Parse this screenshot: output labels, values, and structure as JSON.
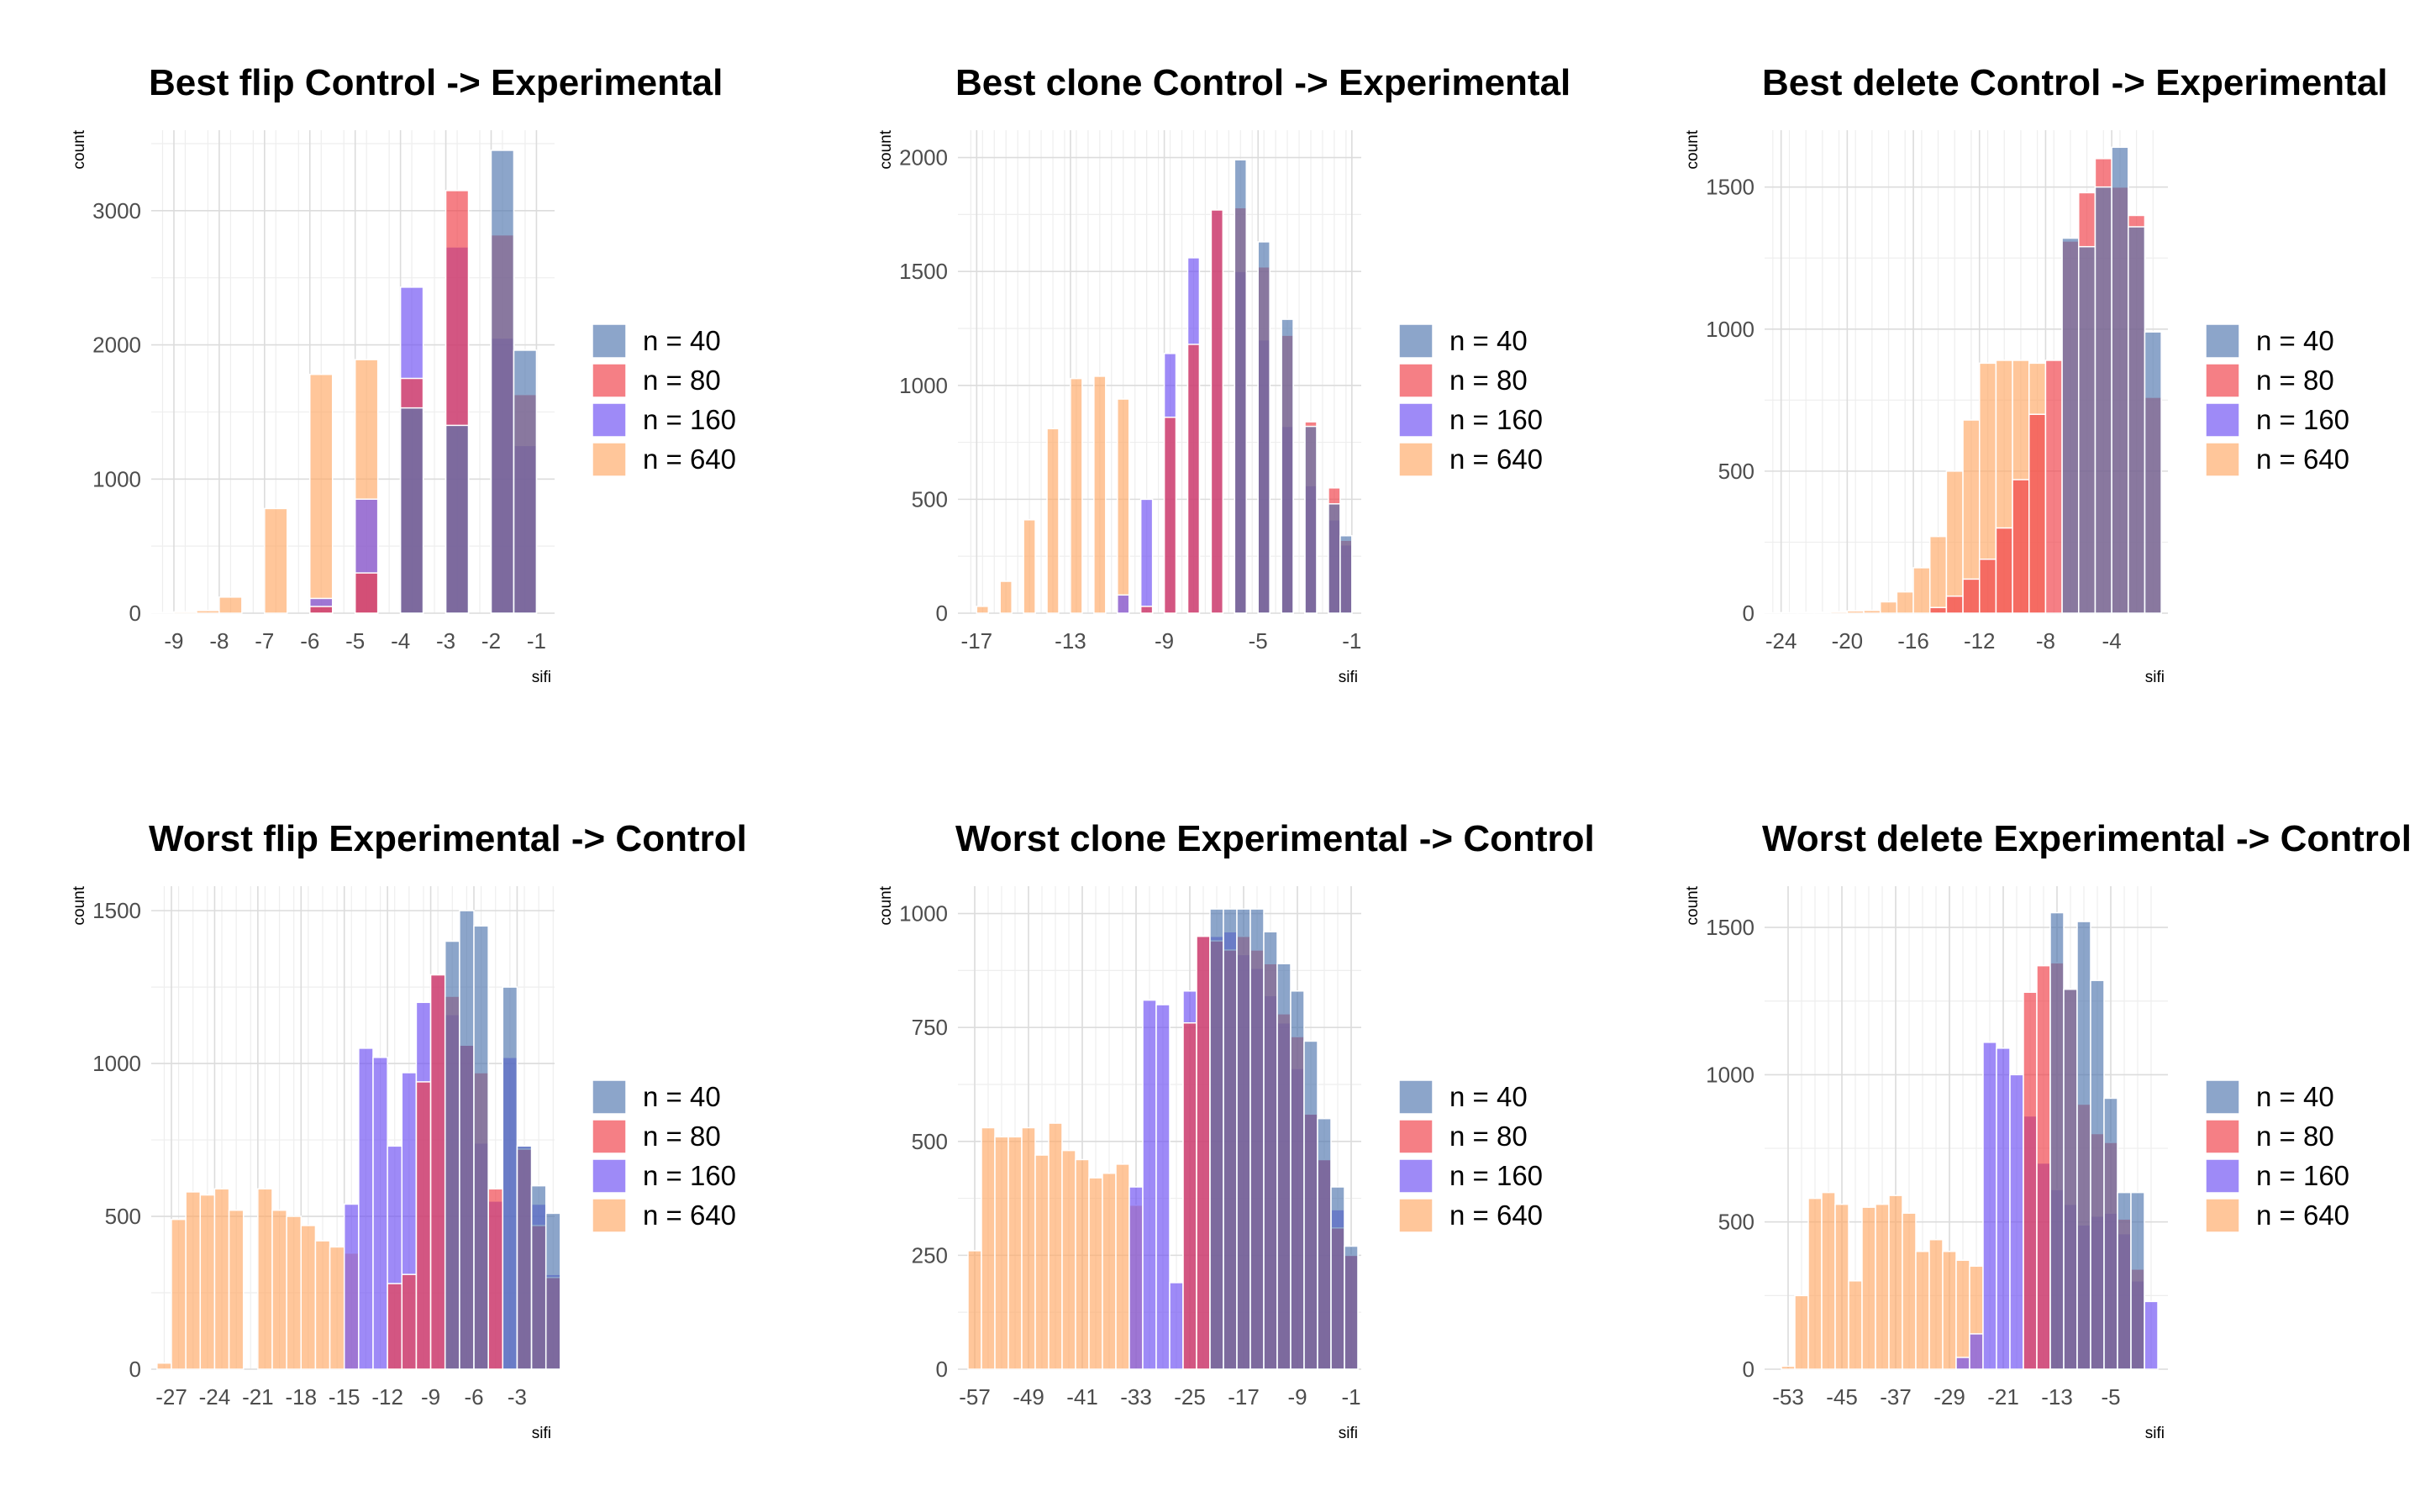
{
  "colors": {
    "n = 40": "#4e74ad",
    "n = 80": "#ef3b43",
    "n = 160": "#6a4cf2",
    "n = 640": "#ffa764"
  },
  "chart_data": [
    {
      "type": "bar",
      "title": "Best flip Control -> Experimental",
      "xlabel": "sifi",
      "ylabel": "count",
      "binwidth": 0.5,
      "xlim": [
        -9.5,
        -0.6
      ],
      "ylim": [
        0,
        3600
      ],
      "xticks": [
        -9,
        -8,
        -7,
        -6,
        -5,
        -4,
        -3,
        -2,
        -1
      ],
      "yticks": [
        0,
        1000,
        2000,
        3000
      ],
      "legend_position": "right",
      "bins": [
        -9.25,
        -8.75,
        -8.25,
        -7.75,
        -7.25,
        -6.75,
        -6.25,
        -5.75,
        -5.25,
        -4.75,
        -4.25,
        -3.75,
        -3.25,
        -2.75,
        -2.25,
        -1.75,
        -1.25
      ],
      "series": [
        {
          "name": "n = 640",
          "values": [
            5,
            10,
            20,
            120,
            0,
            780,
            0,
            1780,
            0,
            1890,
            0,
            0,
            0,
            0,
            0,
            0,
            0
          ]
        },
        {
          "name": "n = 160",
          "values": [
            0,
            0,
            0,
            0,
            0,
            0,
            0,
            110,
            0,
            850,
            0,
            2430,
            0,
            2730,
            0,
            2050,
            1250
          ]
        },
        {
          "name": "n = 80",
          "values": [
            0,
            0,
            0,
            0,
            0,
            0,
            0,
            50,
            0,
            300,
            0,
            1750,
            0,
            3150,
            0,
            2820,
            1630
          ]
        },
        {
          "name": "n = 40",
          "values": [
            0,
            0,
            0,
            0,
            0,
            0,
            0,
            0,
            0,
            0,
            0,
            1530,
            0,
            1400,
            0,
            3450,
            1960
          ]
        }
      ]
    },
    {
      "type": "bar",
      "title": "Best clone Control -> Experimental",
      "xlabel": "sifi",
      "ylabel": "count",
      "binwidth": 0.5,
      "xlim": [
        -17.8,
        -0.6
      ],
      "ylim": [
        0,
        2120
      ],
      "xticks": [
        -17,
        -13,
        -9,
        -5,
        -1
      ],
      "yticks": [
        0,
        500,
        1000,
        1500,
        2000
      ],
      "legend_position": "right",
      "bins": [
        -17.25,
        -16.75,
        -16.25,
        -15.75,
        -15.25,
        -14.75,
        -14.25,
        -13.75,
        -13.25,
        -12.75,
        -12.25,
        -11.75,
        -11.25,
        -10.75,
        -10.25,
        -9.75,
        -9.25,
        -8.75,
        -8.25,
        -7.75,
        -7.25,
        -6.75,
        -6.25,
        -5.75,
        -5.25,
        -4.75,
        -4.25,
        -3.75,
        -3.25,
        -2.75,
        -2.25,
        -1.75,
        -1.25
      ],
      "series": [
        {
          "name": "n = 640",
          "values": [
            0,
            30,
            0,
            140,
            0,
            410,
            0,
            810,
            0,
            1030,
            0,
            1040,
            0,
            940,
            0,
            0,
            0,
            0,
            0,
            0,
            0,
            0,
            0,
            0,
            0,
            0,
            0,
            0,
            0,
            0,
            0,
            0,
            0
          ]
        },
        {
          "name": "n = 160",
          "values": [
            0,
            0,
            0,
            0,
            0,
            0,
            0,
            0,
            0,
            0,
            0,
            0,
            0,
            80,
            0,
            500,
            0,
            1140,
            0,
            1560,
            0,
            1770,
            0,
            1500,
            0,
            1200,
            0,
            820,
            0,
            560,
            0,
            410,
            300
          ]
        },
        {
          "name": "n = 80",
          "values": [
            0,
            0,
            0,
            0,
            0,
            0,
            0,
            0,
            0,
            0,
            0,
            0,
            0,
            0,
            0,
            30,
            0,
            860,
            0,
            1180,
            0,
            1770,
            0,
            1780,
            0,
            1520,
            0,
            1220,
            0,
            840,
            0,
            550,
            320
          ]
        },
        {
          "name": "n = 40",
          "values": [
            0,
            0,
            0,
            0,
            0,
            0,
            0,
            0,
            0,
            0,
            0,
            0,
            0,
            0,
            0,
            0,
            0,
            0,
            0,
            0,
            0,
            0,
            0,
            1990,
            0,
            1630,
            0,
            1290,
            0,
            820,
            0,
            480,
            340
          ]
        }
      ]
    },
    {
      "type": "bar",
      "title": "Best delete Control -> Experimental",
      "xlabel": "sifi",
      "ylabel": "count",
      "binwidth": 1,
      "xlim": [
        -25,
        -0.6
      ],
      "ylim": [
        0,
        1700
      ],
      "xticks": [
        -24,
        -20,
        -16,
        -12,
        -8,
        -4
      ],
      "yticks": [
        0,
        500,
        1000,
        1500
      ],
      "legend_position": "right",
      "bins": [
        -24.5,
        -23.5,
        -22.5,
        -21.5,
        -20.5,
        -19.5,
        -18.5,
        -17.5,
        -16.5,
        -15.5,
        -14.5,
        -13.5,
        -12.5,
        -11.5,
        -10.5,
        -9.5,
        -8.5,
        -7.5,
        -6.5,
        -5.5,
        -4.5,
        -3.5,
        -2.5,
        -1.5
      ],
      "series": [
        {
          "name": "n = 640",
          "values": [
            1,
            2,
            3,
            3,
            5,
            8,
            10,
            40,
            75,
            160,
            270,
            500,
            680,
            880,
            890,
            890,
            880,
            0,
            0,
            0,
            0,
            0,
            0,
            0
          ]
        },
        {
          "name": "n = 160",
          "values": [
            0,
            0,
            0,
            0,
            0,
            0,
            0,
            0,
            0,
            0,
            0,
            0,
            0,
            0,
            0,
            0,
            0,
            0,
            0,
            0,
            0,
            0,
            0,
            0
          ]
        },
        {
          "name": "n = 80",
          "values": [
            0,
            0,
            0,
            0,
            0,
            0,
            0,
            0,
            0,
            0,
            20,
            60,
            120,
            190,
            300,
            470,
            700,
            890,
            1310,
            1480,
            1600,
            1500,
            1400,
            760
          ]
        },
        {
          "name": "n = 40",
          "values": [
            0,
            0,
            0,
            0,
            0,
            0,
            0,
            0,
            0,
            0,
            0,
            0,
            0,
            0,
            0,
            0,
            0,
            0,
            1320,
            1290,
            1500,
            1640,
            1360,
            990
          ]
        }
      ]
    },
    {
      "type": "bar",
      "title": "Worst flip Experimental -> Control",
      "xlabel": "sifi",
      "ylabel": "count",
      "binwidth": 1,
      "xlim": [
        -28.4,
        -0.4
      ],
      "ylim": [
        0,
        1580
      ],
      "xticks": [
        -27,
        -24,
        -21,
        -18,
        -15,
        -12,
        -9,
        -6,
        -3
      ],
      "yticks": [
        0,
        500,
        1000,
        1500
      ],
      "legend_position": "right",
      "bins": [
        -27.5,
        -26.5,
        -25.5,
        -24.5,
        -23.5,
        -22.5,
        -21.5,
        -20.5,
        -19.5,
        -18.5,
        -17.5,
        -16.5,
        -15.5,
        -14.5,
        -13.5,
        -12.5,
        -11.5,
        -10.5,
        -9.5,
        -8.5,
        -7.5,
        -6.5,
        -5.5,
        -4.5,
        -3.5,
        -2.5,
        -1.5,
        -0.5
      ],
      "series": [
        {
          "name": "n = 640",
          "values": [
            20,
            490,
            580,
            570,
            590,
            520,
            0,
            590,
            520,
            500,
            470,
            420,
            400,
            380,
            0,
            0,
            0,
            0,
            0,
            0,
            0,
            0,
            0,
            0,
            0,
            0,
            0,
            0
          ]
        },
        {
          "name": "n = 160",
          "values": [
            0,
            0,
            0,
            0,
            0,
            0,
            0,
            0,
            0,
            0,
            0,
            0,
            0,
            540,
            1050,
            1020,
            730,
            970,
            1200,
            1290,
            1160,
            1060,
            740,
            550,
            1020,
            730,
            540,
            310
          ]
        },
        {
          "name": "n = 80",
          "values": [
            0,
            0,
            0,
            0,
            0,
            0,
            0,
            0,
            0,
            0,
            0,
            0,
            0,
            0,
            0,
            0,
            280,
            310,
            940,
            1290,
            1220,
            1060,
            970,
            590,
            0,
            720,
            470,
            300
          ]
        },
        {
          "name": "n = 40",
          "values": [
            0,
            0,
            0,
            0,
            0,
            0,
            0,
            0,
            0,
            0,
            0,
            0,
            0,
            0,
            0,
            0,
            0,
            0,
            0,
            0,
            1400,
            1500,
            1450,
            0,
            1250,
            730,
            600,
            510
          ]
        }
      ]
    },
    {
      "type": "bar",
      "title": "Worst clone Experimental -> Control",
      "xlabel": "sifi",
      "ylabel": "count",
      "binwidth": 2,
      "xlim": [
        -59.5,
        0.5
      ],
      "ylim": [
        0,
        1060
      ],
      "xticks": [
        -57,
        -49,
        -41,
        -33,
        -25,
        -17,
        -9,
        -1
      ],
      "yticks": [
        0,
        250,
        500,
        750,
        1000
      ],
      "legend_position": "right",
      "bins": [
        -57,
        -55,
        -53,
        -51,
        -49,
        -47,
        -45,
        -43,
        -41,
        -39,
        -37,
        -35,
        -33,
        -31,
        -29,
        -27,
        -25,
        -23,
        -21,
        -19,
        -17,
        -15,
        -13,
        -11,
        -9,
        -7,
        -5,
        -3,
        -1
      ],
      "series": [
        {
          "name": "n = 640",
          "values": [
            260,
            530,
            510,
            510,
            530,
            470,
            540,
            480,
            460,
            420,
            430,
            450,
            360,
            0,
            0,
            0,
            0,
            0,
            0,
            0,
            0,
            0,
            0,
            0,
            0,
            0,
            0,
            0,
            0
          ]
        },
        {
          "name": "n = 160",
          "values": [
            0,
            0,
            0,
            0,
            0,
            0,
            0,
            0,
            0,
            0,
            0,
            0,
            400,
            810,
            800,
            190,
            830,
            950,
            950,
            960,
            910,
            880,
            820,
            760,
            660,
            560,
            460,
            350,
            250
          ]
        },
        {
          "name": "n = 80",
          "values": [
            0,
            0,
            0,
            0,
            0,
            0,
            0,
            0,
            0,
            0,
            0,
            0,
            0,
            0,
            0,
            0,
            760,
            950,
            940,
            920,
            950,
            920,
            890,
            780,
            730,
            560,
            460,
            310,
            250
          ]
        },
        {
          "name": "n = 40",
          "values": [
            0,
            0,
            0,
            0,
            0,
            0,
            0,
            0,
            0,
            0,
            0,
            0,
            0,
            0,
            0,
            0,
            0,
            0,
            1010,
            1010,
            1010,
            1010,
            960,
            890,
            830,
            720,
            550,
            400,
            270
          ]
        }
      ]
    },
    {
      "type": "bar",
      "title": "Worst delete Experimental -> Control",
      "xlabel": "sifi",
      "ylabel": "count",
      "binwidth": 2,
      "xlim": [
        -56.5,
        3.5
      ],
      "ylim": [
        0,
        1640
      ],
      "xticks": [
        -53,
        -45,
        -37,
        -29,
        -21,
        -13,
        -5
      ],
      "yticks": [
        0,
        500,
        1000,
        1500
      ],
      "legend_position": "right",
      "bins": [
        -53,
        -51,
        -49,
        -47,
        -45,
        -43,
        -41,
        -39,
        -37,
        -35,
        -33,
        -31,
        -29,
        -27,
        -25,
        -23,
        -21,
        -19,
        -17,
        -15,
        -13,
        -11,
        -9,
        -7,
        -5,
        -3,
        -1,
        1
      ],
      "series": [
        {
          "name": "n = 640",
          "values": [
            10,
            250,
            580,
            600,
            560,
            300,
            550,
            560,
            590,
            530,
            400,
            440,
            400,
            370,
            350,
            0,
            0,
            0,
            0,
            0,
            0,
            0,
            0,
            0,
            0,
            0,
            0,
            0
          ]
        },
        {
          "name": "n = 160",
          "values": [
            0,
            0,
            0,
            0,
            0,
            0,
            0,
            0,
            0,
            0,
            0,
            0,
            0,
            40,
            120,
            1110,
            1090,
            1000,
            860,
            700,
            610,
            560,
            490,
            520,
            530,
            460,
            300,
            230
          ]
        },
        {
          "name": "n = 80",
          "values": [
            0,
            0,
            0,
            0,
            0,
            0,
            0,
            0,
            0,
            0,
            0,
            0,
            0,
            0,
            0,
            0,
            0,
            0,
            1280,
            1370,
            1380,
            1290,
            900,
            800,
            770,
            510,
            340,
            0
          ]
        },
        {
          "name": "n = 40",
          "values": [
            0,
            0,
            0,
            0,
            0,
            0,
            0,
            0,
            0,
            0,
            0,
            0,
            0,
            0,
            0,
            0,
            0,
            0,
            0,
            0,
            1550,
            1290,
            1520,
            1320,
            920,
            600,
            600,
            0
          ]
        }
      ]
    }
  ]
}
